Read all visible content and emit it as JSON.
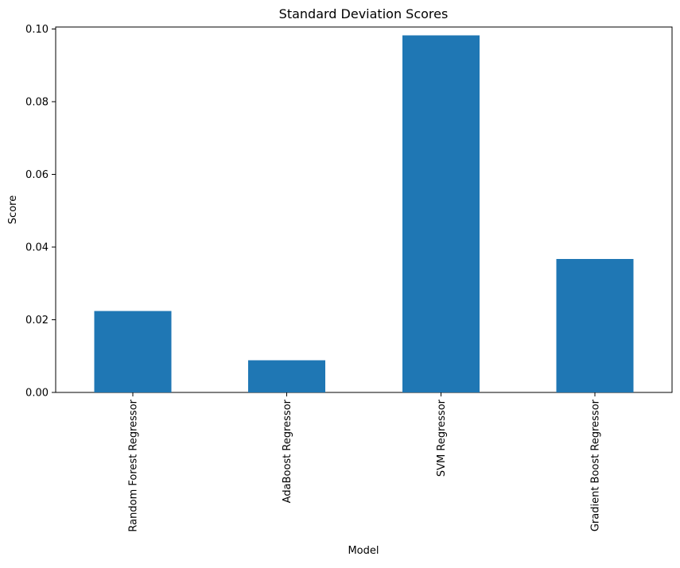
{
  "chart_data": {
    "type": "bar",
    "title": "Standard Deviation Scores",
    "xlabel": "Model",
    "ylabel": "Score",
    "categories": [
      "Random Forest Regressor",
      "AdaBoost Regressor",
      "SVM Regressor",
      "Gradient Boost Regressor"
    ],
    "values": [
      0.0224,
      0.0089,
      0.0983,
      0.0367
    ],
    "ylim": [
      0,
      0.1006
    ],
    "yticks": [
      0.0,
      0.02,
      0.04,
      0.06,
      0.08,
      0.1
    ],
    "ytick_labels": [
      "0.00",
      "0.02",
      "0.04",
      "0.06",
      "0.08",
      "0.10"
    ],
    "bar_color": "#1f77b4",
    "grid": false,
    "legend": "none"
  }
}
